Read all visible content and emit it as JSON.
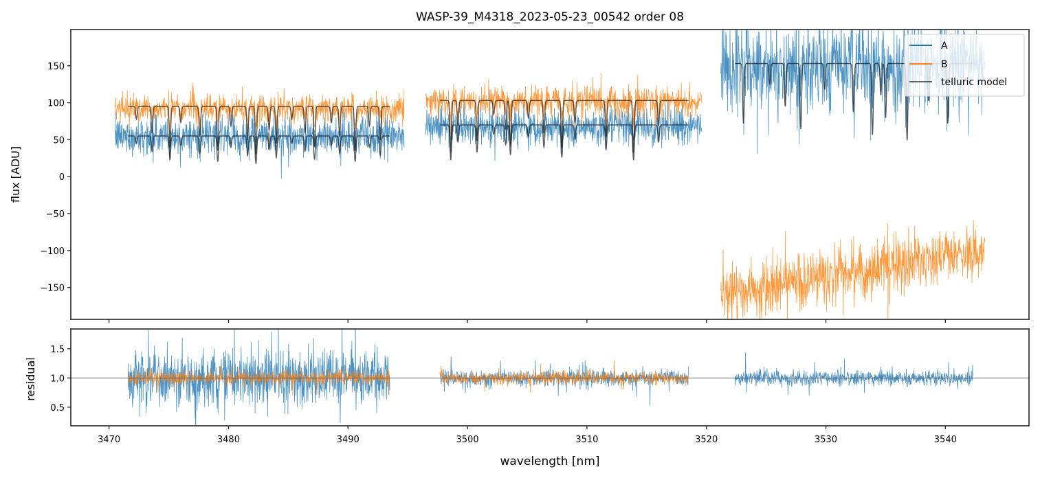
{
  "chart_data": [
    {
      "type": "line",
      "panel": "flux",
      "title": "WASP-39_M4318_2023-05-23_00542  order 08",
      "xlabel": "",
      "ylabel": "flux [ADU]",
      "xlim": [
        3466.8,
        3547.0
      ],
      "ylim": [
        -193,
        199
      ],
      "xticks": [
        3470,
        3480,
        3490,
        3500,
        3510,
        3520,
        3530,
        3540
      ],
      "xtick_labels_shown": false,
      "yticks": [
        -150,
        -100,
        -50,
        0,
        50,
        100,
        150
      ],
      "ytick_labels": [
        "−150",
        "−100",
        "−50",
        "0",
        "50",
        "100",
        "150"
      ],
      "grid": false,
      "legend": {
        "placement": "top-right",
        "entries": [
          {
            "label": "A",
            "color": "#1f77b4"
          },
          {
            "label": "B",
            "color": "#ff7f0e"
          },
          {
            "label": "telluric model",
            "color": "#333333"
          }
        ]
      },
      "series": [
        {
          "name": "A",
          "color": "#1f77b4",
          "alpha": 0.8,
          "segments": [
            {
              "x_range": [
                3470.5,
                3494.7
              ],
              "level": 55,
              "noise": 12,
              "line_depth": 0.35
            },
            {
              "x_range": [
                3496.5,
                3519.6
              ],
              "level": 68,
              "noise": 12,
              "line_depth": 0.35
            },
            {
              "x_range": [
                3521.2,
                3543.3
              ],
              "level": 150,
              "noise": 30,
              "line_depth": 0.35
            }
          ]
        },
        {
          "name": "B",
          "color": "#ff7f0e",
          "alpha": 0.8,
          "segments": [
            {
              "x_range": [
                3470.5,
                3494.7
              ],
              "level": 93,
              "noise": 9,
              "line_depth": 0.35
            },
            {
              "x_range": [
                3496.5,
                3519.6
              ],
              "level": 102,
              "noise": 10,
              "line_depth": 0.35
            },
            {
              "x_range": [
                3521.2,
                3543.3
              ],
              "level_start": -160,
              "level_end": -100,
              "noise": 18,
              "line_depth": 0
            }
          ]
        },
        {
          "name": "telluric model (A)",
          "color": "#222222",
          "alpha": 0.75,
          "segments": [
            {
              "x_range": [
                3471.6,
                3493.5
              ],
              "level": 55
            },
            {
              "x_range": [
                3497.7,
                3518.5
              ],
              "level": 70
            },
            {
              "x_range": [
                3522.4,
                3542.3
              ],
              "level": 153
            }
          ]
        },
        {
          "name": "telluric model (B)",
          "color": "#222222",
          "alpha": 0.75,
          "segments": [
            {
              "x_range": [
                3471.6,
                3493.5
              ],
              "level": 95
            },
            {
              "x_range": [
                3497.7,
                3518.5
              ],
              "level": 103
            }
          ]
        }
      ],
      "telluric_lines_nm": [
        3472.3,
        3473.6,
        3475.1,
        3476.0,
        3477.6,
        3479.1,
        3480.2,
        3481.6,
        3482.3,
        3483.4,
        3484.0,
        3485.3,
        3486.4,
        3487.2,
        3488.6,
        3489.3,
        3490.6,
        3491.8,
        3492.7,
        3498.6,
        3499.2,
        3500.8,
        3502.2,
        3503.2,
        3503.6,
        3505.1,
        3506.4,
        3507.9,
        3509.0,
        3511.6,
        3513.9,
        3516.0,
        3523.1,
        3525.3,
        3526.6,
        3527.9,
        3529.9,
        3532.3,
        3533.9,
        3534.6,
        3535.0,
        3536.8,
        3538.6,
        3540.2
      ]
    },
    {
      "type": "line",
      "panel": "residual",
      "xlabel": "wavelength [nm]",
      "ylabel": "residual",
      "xlim": [
        3466.8,
        3547.0
      ],
      "ylim": [
        0.18,
        1.84
      ],
      "xticks": [
        3470,
        3480,
        3490,
        3500,
        3510,
        3520,
        3530,
        3540
      ],
      "xtick_labels": [
        "3470",
        "3480",
        "3490",
        "3500",
        "3510",
        "3520",
        "3530",
        "3540"
      ],
      "yticks": [
        0.5,
        1.0,
        1.5
      ],
      "ytick_labels": [
        "0.5",
        "1.0",
        "1.5"
      ],
      "reference_line": {
        "y": 1.0,
        "color": "#555555"
      },
      "grid": false,
      "series": [
        {
          "name": "A",
          "color": "#1f77b4",
          "alpha": 0.8,
          "segments": [
            {
              "x_range": [
                3471.6,
                3493.5
              ],
              "center": 1.0,
              "noise": 0.45
            },
            {
              "x_range": [
                3497.7,
                3518.5
              ],
              "center": 1.0,
              "noise": 0.13
            },
            {
              "x_range": [
                3522.4,
                3542.3
              ],
              "center": 1.0,
              "noise": 0.13
            }
          ]
        },
        {
          "name": "B",
          "color": "#ff7f0e",
          "alpha": 0.8,
          "segments": [
            {
              "x_range": [
                3471.6,
                3493.5
              ],
              "center": 1.0,
              "noise": 0.11
            },
            {
              "x_range": [
                3497.7,
                3518.5
              ],
              "center": 1.0,
              "noise": 0.1
            }
          ]
        }
      ]
    }
  ]
}
